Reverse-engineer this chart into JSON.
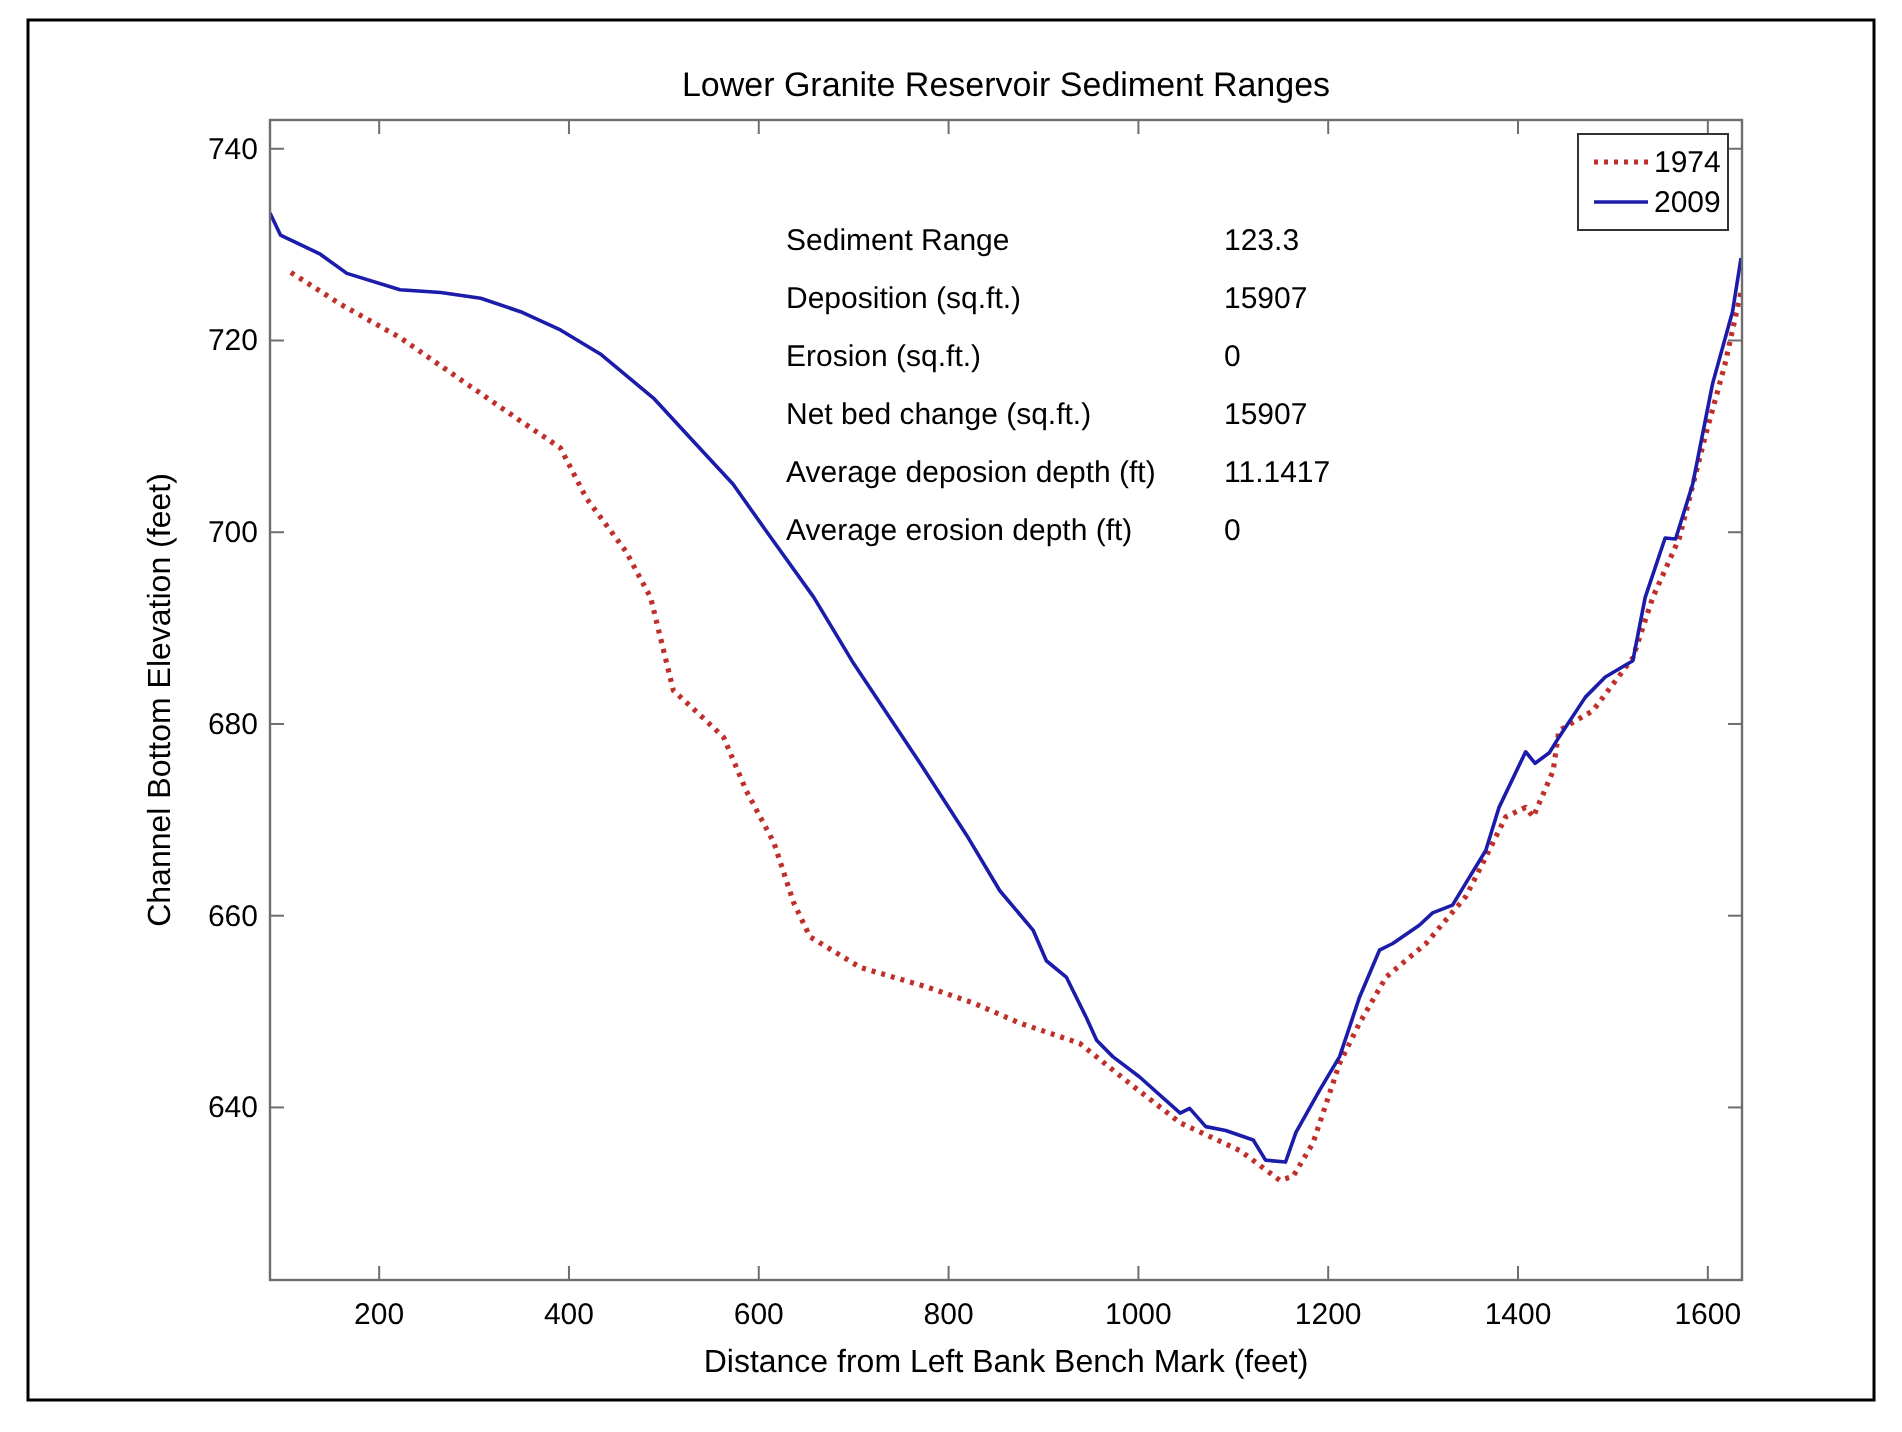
{
  "chart_data": {
    "type": "line",
    "title": "Lower Granite Reservoir Sediment Ranges",
    "xlabel": "Distance from Left Bank Bench Mark (feet)",
    "ylabel": "Channel Bottom Elevation (feet)",
    "xlim": [
      85,
      1636
    ],
    "ylim": [
      622,
      743
    ],
    "xticks": [
      200,
      400,
      600,
      800,
      1000,
      1200,
      1400,
      1600
    ],
    "yticks": [
      640,
      660,
      680,
      700,
      720,
      740
    ],
    "grid": false,
    "legend": "top right",
    "annotations": [
      "Sediment Range",
      "123.3",
      "Deposition (sq.ft.)",
      "15907",
      "Erosion (sq.ft.)",
      "0",
      "Net bed change (sq.ft.)",
      "15907",
      "Average deposion depth (ft)",
      "11.1417",
      "Average erosion depth (ft)",
      "0"
    ],
    "series": [
      {
        "name": "1974",
        "color": "#c0302a",
        "line_style": "dotted",
        "x": [
          107,
          159,
          222,
          292,
          349,
          391,
          418,
          460,
          486,
          510,
          545,
          563,
          587,
          616,
          637,
          654,
          707,
          776,
          826,
          875,
          938,
          987,
          1044,
          1107,
          1149,
          1163,
          1184,
          1212,
          1233,
          1261,
          1303,
          1345,
          1366,
          1387,
          1408,
          1416,
          1437,
          1443,
          1479,
          1521,
          1542,
          1570,
          1597,
          1618,
          1635
        ],
        "values": [
          727.1,
          723.8,
          720.3,
          715.5,
          711.6,
          708.8,
          703.6,
          698,
          693.2,
          683.5,
          680.3,
          678.6,
          673,
          667.6,
          661.3,
          657.8,
          654.6,
          652.6,
          650.9,
          648.8,
          646.7,
          642.8,
          638.4,
          635.5,
          632.4,
          632.8,
          636.3,
          644.6,
          648.8,
          653.6,
          657.1,
          662,
          666.1,
          670.3,
          671.3,
          670.3,
          675.1,
          679.3,
          681.4,
          686.9,
          693.2,
          699.4,
          709.9,
          717.5,
          725.1
        ]
      },
      {
        "name": "2009",
        "color": "#1c1caa",
        "line_style": "solid",
        "x": [
          85,
          96,
          138,
          166,
          222,
          265,
          307,
          349,
          391,
          433,
          489,
          531,
          573,
          608,
          658,
          700,
          770,
          819,
          854,
          889,
          903,
          924,
          945,
          956,
          973,
          1001,
          1044,
          1054,
          1071,
          1092,
          1121,
          1134,
          1155,
          1166,
          1191,
          1212,
          1233,
          1254,
          1268,
          1296,
          1310,
          1331,
          1345,
          1366,
          1380,
          1408,
          1418,
          1433,
          1443,
          1471,
          1492,
          1521,
          1534,
          1555,
          1566,
          1584,
          1605,
          1626,
          1635
        ],
        "values": [
          733.3,
          731,
          729,
          727,
          725.3,
          725,
          724.4,
          723,
          721.1,
          718.6,
          714,
          709.5,
          705,
          700.1,
          693.2,
          686.3,
          675.9,
          668.4,
          662.6,
          658.5,
          655.3,
          653.6,
          649.4,
          647,
          645.3,
          643.2,
          639.4,
          639.9,
          638,
          637.6,
          636.6,
          634.5,
          634.3,
          637.4,
          641.8,
          645.3,
          651.5,
          656.4,
          657.1,
          659,
          660.3,
          661.1,
          663.4,
          666.8,
          671.3,
          677.1,
          675.9,
          677,
          678.6,
          682.8,
          684.9,
          686.6,
          693.2,
          699.4,
          699.3,
          705,
          715.5,
          723,
          728.6
        ]
      }
    ]
  }
}
